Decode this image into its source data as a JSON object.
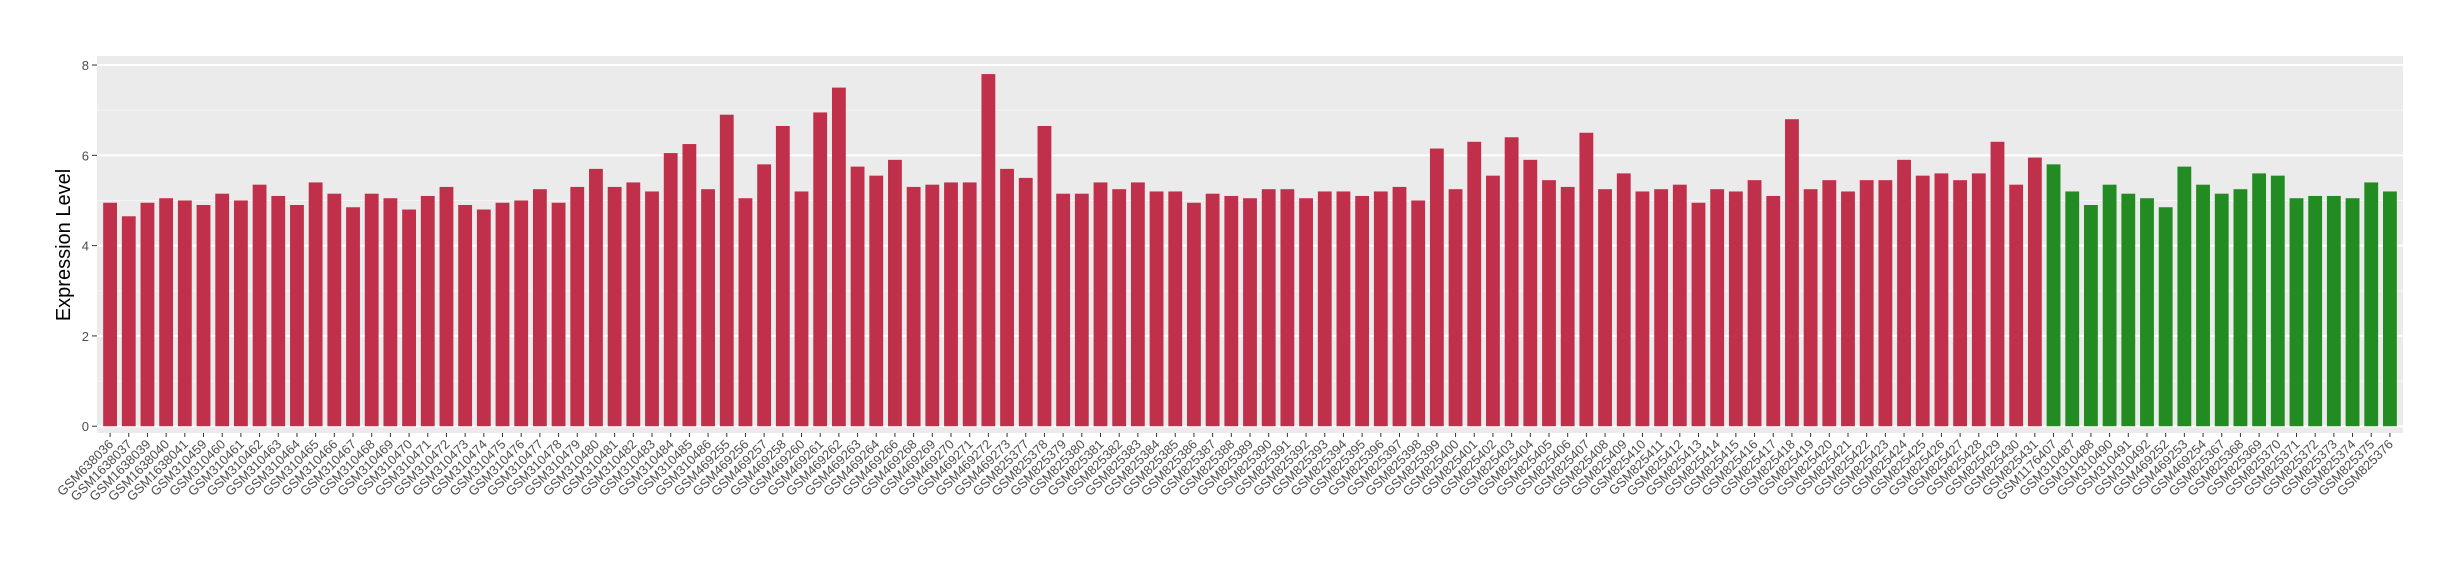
{
  "chart_data": {
    "type": "bar",
    "y_label": "Expression Level",
    "categories": [
      "GSM638036",
      "GSM1638037",
      "GSM1638039",
      "GSM1638040",
      "GSM1638041",
      "GSM310459",
      "GSM310460",
      "GSM310461",
      "GSM310462",
      "GSM310463",
      "GSM310464",
      "GSM310465",
      "GSM310466",
      "GSM310467",
      "GSM310468",
      "GSM310469",
      "GSM310470",
      "GSM310471",
      "GSM310472",
      "GSM310473",
      "GSM310474",
      "GSM310475",
      "GSM310476",
      "GSM310477",
      "GSM310478",
      "GSM310479",
      "GSM310480",
      "GSM310481",
      "GSM310482",
      "GSM310483",
      "GSM310484",
      "GSM310485",
      "GSM310486",
      "GSM469255",
      "GSM469256",
      "GSM469257",
      "GSM469258",
      "GSM469260",
      "GSM469261",
      "GSM469262",
      "GSM469263",
      "GSM469264",
      "GSM469266",
      "GSM469268",
      "GSM469269",
      "GSM469270",
      "GSM469271",
      "GSM469272",
      "GSM469273",
      "GSM825377",
      "GSM825378",
      "GSM825379",
      "GSM825380",
      "GSM825381",
      "GSM825382",
      "GSM825383",
      "GSM825384",
      "GSM825385",
      "GSM825386",
      "GSM825387",
      "GSM825388",
      "GSM825389",
      "GSM825390",
      "GSM825391",
      "GSM825392",
      "GSM825393",
      "GSM825394",
      "GSM825395",
      "GSM825396",
      "GSM825397",
      "GSM825398",
      "GSM825399",
      "GSM825400",
      "GSM825401",
      "GSM825402",
      "GSM825403",
      "GSM825404",
      "GSM825405",
      "GSM825406",
      "GSM825407",
      "GSM825408",
      "GSM825409",
      "GSM825410",
      "GSM825411",
      "GSM825412",
      "GSM825413",
      "GSM825414",
      "GSM825415",
      "GSM825416",
      "GSM825417",
      "GSM825418",
      "GSM825419",
      "GSM825420",
      "GSM825421",
      "GSM825422",
      "GSM825423",
      "GSM825424",
      "GSM825425",
      "GSM825426",
      "GSM825427",
      "GSM825428",
      "GSM825429",
      "GSM825430",
      "GSM825431",
      "GSM1176407",
      "GSM310487",
      "GSM310488",
      "GSM310490",
      "GSM310491",
      "GSM310492",
      "GSM469252",
      "GSM469253",
      "GSM469254",
      "GSM825367",
      "GSM825368",
      "GSM825369",
      "GSM825370",
      "GSM825371",
      "GSM825372",
      "GSM825373",
      "GSM825374",
      "GSM825375",
      "GSM825376"
    ],
    "values": [
      4.95,
      4.65,
      4.95,
      5.05,
      5.0,
      4.9,
      5.15,
      5.0,
      5.35,
      5.1,
      4.9,
      5.4,
      5.15,
      4.85,
      5.15,
      5.05,
      4.8,
      5.1,
      5.3,
      4.9,
      4.8,
      4.95,
      5.0,
      5.25,
      4.95,
      5.3,
      5.7,
      5.3,
      5.4,
      5.2,
      6.05,
      6.25,
      5.25,
      6.9,
      5.05,
      5.8,
      6.65,
      5.2,
      6.95,
      7.5,
      5.75,
      5.55,
      5.9,
      5.3,
      5.35,
      5.4,
      5.4,
      7.8,
      5.7,
      5.5,
      6.65,
      5.15,
      5.15,
      5.4,
      5.25,
      5.4,
      5.2,
      5.2,
      4.95,
      5.15,
      5.1,
      5.05,
      5.25,
      5.25,
      5.05,
      5.2,
      5.2,
      5.1,
      5.2,
      5.3,
      5.0,
      6.15,
      5.25,
      6.3,
      5.55,
      6.4,
      5.9,
      5.45,
      5.3,
      6.5,
      5.25,
      5.6,
      5.2,
      5.25,
      5.35,
      4.95,
      5.25,
      5.2,
      5.45,
      5.1,
      6.8,
      5.25,
      5.45,
      5.2,
      5.45,
      5.45,
      5.9,
      5.55,
      5.6,
      5.45,
      5.6,
      6.3,
      5.35,
      5.95,
      5.8,
      5.2,
      4.9,
      5.35,
      5.15,
      5.05,
      4.85,
      5.75,
      5.35,
      5.15,
      5.25,
      5.6,
      5.55,
      5.05,
      5.1,
      5.1,
      5.05,
      5.4,
      5.2
    ],
    "colors": [
      "#c1304a",
      "#c1304a",
      "#c1304a",
      "#c1304a",
      "#c1304a",
      "#c1304a",
      "#c1304a",
      "#c1304a",
      "#c1304a",
      "#c1304a",
      "#c1304a",
      "#c1304a",
      "#c1304a",
      "#c1304a",
      "#c1304a",
      "#c1304a",
      "#c1304a",
      "#c1304a",
      "#c1304a",
      "#c1304a",
      "#c1304a",
      "#c1304a",
      "#c1304a",
      "#c1304a",
      "#c1304a",
      "#c1304a",
      "#c1304a",
      "#c1304a",
      "#c1304a",
      "#c1304a",
      "#c1304a",
      "#c1304a",
      "#c1304a",
      "#c1304a",
      "#c1304a",
      "#c1304a",
      "#c1304a",
      "#c1304a",
      "#c1304a",
      "#c1304a",
      "#c1304a",
      "#c1304a",
      "#c1304a",
      "#c1304a",
      "#c1304a",
      "#c1304a",
      "#c1304a",
      "#c1304a",
      "#c1304a",
      "#c1304a",
      "#c1304a",
      "#c1304a",
      "#c1304a",
      "#c1304a",
      "#c1304a",
      "#c1304a",
      "#c1304a",
      "#c1304a",
      "#c1304a",
      "#c1304a",
      "#c1304a",
      "#c1304a",
      "#c1304a",
      "#c1304a",
      "#c1304a",
      "#c1304a",
      "#c1304a",
      "#c1304a",
      "#c1304a",
      "#c1304a",
      "#c1304a",
      "#c1304a",
      "#c1304a",
      "#c1304a",
      "#c1304a",
      "#c1304a",
      "#c1304a",
      "#c1304a",
      "#c1304a",
      "#c1304a",
      "#c1304a",
      "#c1304a",
      "#c1304a",
      "#c1304a",
      "#c1304a",
      "#c1304a",
      "#c1304a",
      "#c1304a",
      "#c1304a",
      "#c1304a",
      "#c1304a",
      "#c1304a",
      "#c1304a",
      "#c1304a",
      "#c1304a",
      "#c1304a",
      "#c1304a",
      "#c1304a",
      "#c1304a",
      "#c1304a",
      "#c1304a",
      "#c1304a",
      "#c1304a",
      "#c1304a",
      "#228b22",
      "#228b22",
      "#228b22",
      "#228b22",
      "#228b22",
      "#228b22",
      "#228b22",
      "#228b22",
      "#228b22",
      "#228b22",
      "#228b22",
      "#228b22",
      "#228b22",
      "#228b22",
      "#228b22",
      "#228b22",
      "#228b22",
      "#228b22",
      "#228b22"
    ],
    "ylim": [
      -0.15,
      8.2
    ],
    "yticks": [
      0,
      2,
      4,
      6,
      8
    ],
    "grid": true
  }
}
